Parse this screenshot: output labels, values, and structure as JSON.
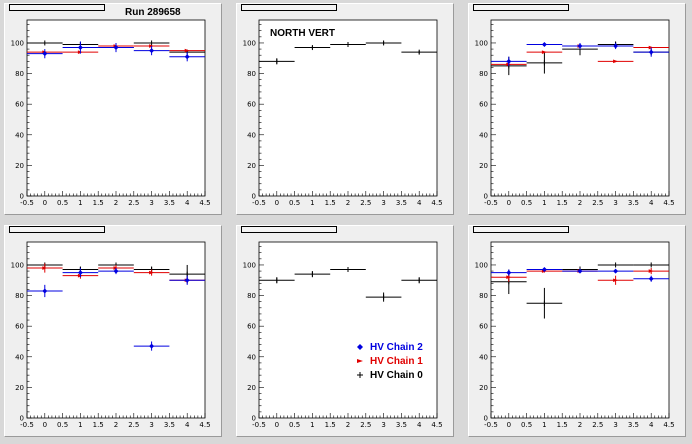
{
  "chart_data": [
    {
      "type": "scatter",
      "title": "",
      "annotation": "Run 289658",
      "x_ticks": [
        -0.5,
        0,
        0.5,
        1,
        1.5,
        2,
        2.5,
        3,
        3.5,
        4,
        4.5
      ],
      "y_ticks": [
        0,
        20,
        40,
        60,
        80,
        100
      ],
      "xlim": [
        -0.5,
        4.5
      ],
      "ylim": [
        0,
        115
      ],
      "series": [
        {
          "color": "#000000",
          "marker": "cross",
          "x": [
            0,
            1,
            2,
            3,
            4
          ],
          "y": [
            100,
            99,
            97,
            100,
            94
          ],
          "yerr": [
            0,
            0,
            0,
            0,
            0
          ]
        },
        {
          "color": "#e00000",
          "marker": "triangle",
          "x": [
            0,
            1,
            2,
            3,
            4
          ],
          "y": [
            94,
            94,
            98,
            98,
            95
          ],
          "yerr": [
            0,
            0,
            0,
            0,
            0
          ]
        },
        {
          "color": "#0000e0",
          "marker": "diamond",
          "x": [
            0,
            1,
            2,
            3,
            4
          ],
          "y": [
            93,
            97,
            97,
            95,
            91
          ],
          "yerr": [
            3,
            4,
            3,
            3,
            3
          ]
        }
      ]
    },
    {
      "type": "scatter",
      "title": "",
      "annotation": "NORTH VERT",
      "x_ticks": [
        -0.5,
        0,
        0.5,
        1,
        1.5,
        2,
        2.5,
        3,
        3.5,
        4,
        4.5
      ],
      "y_ticks": [
        0,
        20,
        40,
        60,
        80,
        100
      ],
      "xlim": [
        -0.5,
        4.5
      ],
      "ylim": [
        0,
        115
      ],
      "series": [
        {
          "color": "#000000",
          "marker": "cross",
          "x": [
            0,
            1,
            2,
            3,
            4
          ],
          "y": [
            88,
            97,
            99,
            100,
            94
          ],
          "yerr": [
            2,
            1,
            1,
            1,
            1
          ]
        }
      ]
    },
    {
      "type": "scatter",
      "title": "",
      "x_ticks": [
        -0.5,
        0,
        0.5,
        1,
        1.5,
        2,
        2.5,
        3,
        3.5,
        4,
        4.5
      ],
      "y_ticks": [
        0,
        20,
        40,
        60,
        80,
        100
      ],
      "xlim": [
        -0.5,
        4.5
      ],
      "ylim": [
        0,
        115
      ],
      "series": [
        {
          "color": "#000000",
          "marker": "cross",
          "x": [
            0,
            1,
            2,
            3,
            4
          ],
          "y": [
            85,
            87,
            96,
            99,
            94
          ],
          "yerr": [
            6,
            7,
            4,
            2,
            2
          ]
        },
        {
          "color": "#e00000",
          "marker": "triangle",
          "x": [
            0,
            1,
            2,
            3,
            4
          ],
          "y": [
            86,
            94,
            98,
            88,
            97
          ],
          "yerr": [
            0,
            0,
            0,
            0,
            0
          ]
        },
        {
          "color": "#0000e0",
          "marker": "diamond",
          "x": [
            0,
            1,
            2,
            3,
            4
          ],
          "y": [
            88,
            99,
            98,
            98,
            94
          ],
          "yerr": [
            3,
            1,
            2,
            2,
            3
          ]
        }
      ]
    },
    {
      "type": "scatter",
      "title": "",
      "x_ticks": [
        -0.5,
        0,
        0.5,
        1,
        1.5,
        2,
        2.5,
        3,
        3.5,
        4,
        4.5
      ],
      "y_ticks": [
        0,
        20,
        40,
        60,
        80,
        100
      ],
      "xlim": [
        -0.5,
        4.5
      ],
      "ylim": [
        0,
        115
      ],
      "series": [
        {
          "color": "#000000",
          "marker": "cross",
          "x": [
            0,
            1,
            2,
            3,
            4
          ],
          "y": [
            100,
            97,
            100,
            97,
            94
          ],
          "yerr": [
            0,
            2,
            1,
            2,
            6
          ]
        },
        {
          "color": "#e00000",
          "marker": "triangle",
          "x": [
            0,
            1,
            2,
            3,
            4
          ],
          "y": [
            98,
            93,
            98,
            95,
            90
          ],
          "yerr": [
            3,
            2,
            2,
            2,
            2
          ]
        },
        {
          "color": "#0000e0",
          "marker": "diamond",
          "x": [
            0,
            1,
            2,
            3,
            4
          ],
          "y": [
            83,
            95,
            96,
            47,
            90
          ],
          "yerr": [
            4,
            3,
            2,
            3,
            3
          ]
        }
      ]
    },
    {
      "type": "scatter",
      "title": "",
      "x_ticks": [
        -0.5,
        0,
        0.5,
        1,
        1.5,
        2,
        2.5,
        3,
        3.5,
        4,
        4.5
      ],
      "y_ticks": [
        0,
        20,
        40,
        60,
        80,
        100
      ],
      "xlim": [
        -0.5,
        4.5
      ],
      "ylim": [
        0,
        115
      ],
      "series": [
        {
          "color": "#000000",
          "marker": "cross",
          "x": [
            0,
            1,
            2,
            3,
            4
          ],
          "y": [
            90,
            94,
            97,
            79,
            90
          ],
          "yerr": [
            2,
            2,
            1,
            3,
            2
          ]
        }
      ],
      "legend": {
        "position": "bottom-right",
        "entries": [
          {
            "label": "HV Chain 2",
            "color": "#0000e0",
            "marker": "diamond"
          },
          {
            "label": "HV Chain 1",
            "color": "#e00000",
            "marker": "triangle"
          },
          {
            "label": "HV Chain 0",
            "color": "#000000",
            "marker": "cross"
          }
        ]
      }
    },
    {
      "type": "scatter",
      "title": "",
      "x_ticks": [
        -0.5,
        0,
        0.5,
        1,
        1.5,
        2,
        2.5,
        3,
        3.5,
        4,
        4.5
      ],
      "y_ticks": [
        0,
        20,
        40,
        60,
        80,
        100
      ],
      "xlim": [
        -0.5,
        4.5
      ],
      "ylim": [
        0,
        115
      ],
      "series": [
        {
          "color": "#000000",
          "marker": "cross",
          "x": [
            0,
            1,
            2,
            3,
            4
          ],
          "y": [
            89,
            75,
            97,
            100,
            100
          ],
          "yerr": [
            8,
            10,
            2,
            0,
            0
          ]
        },
        {
          "color": "#e00000",
          "marker": "triangle",
          "x": [
            0,
            1,
            2,
            3,
            4
          ],
          "y": [
            92,
            96,
            96,
            90,
            96
          ],
          "yerr": [
            3,
            1,
            1,
            3,
            2
          ]
        },
        {
          "color": "#0000e0",
          "marker": "diamond",
          "x": [
            0,
            1,
            2,
            3,
            4
          ],
          "y": [
            95,
            97,
            96,
            96,
            91
          ],
          "yerr": [
            2,
            1,
            1,
            1,
            2
          ]
        }
      ]
    }
  ]
}
